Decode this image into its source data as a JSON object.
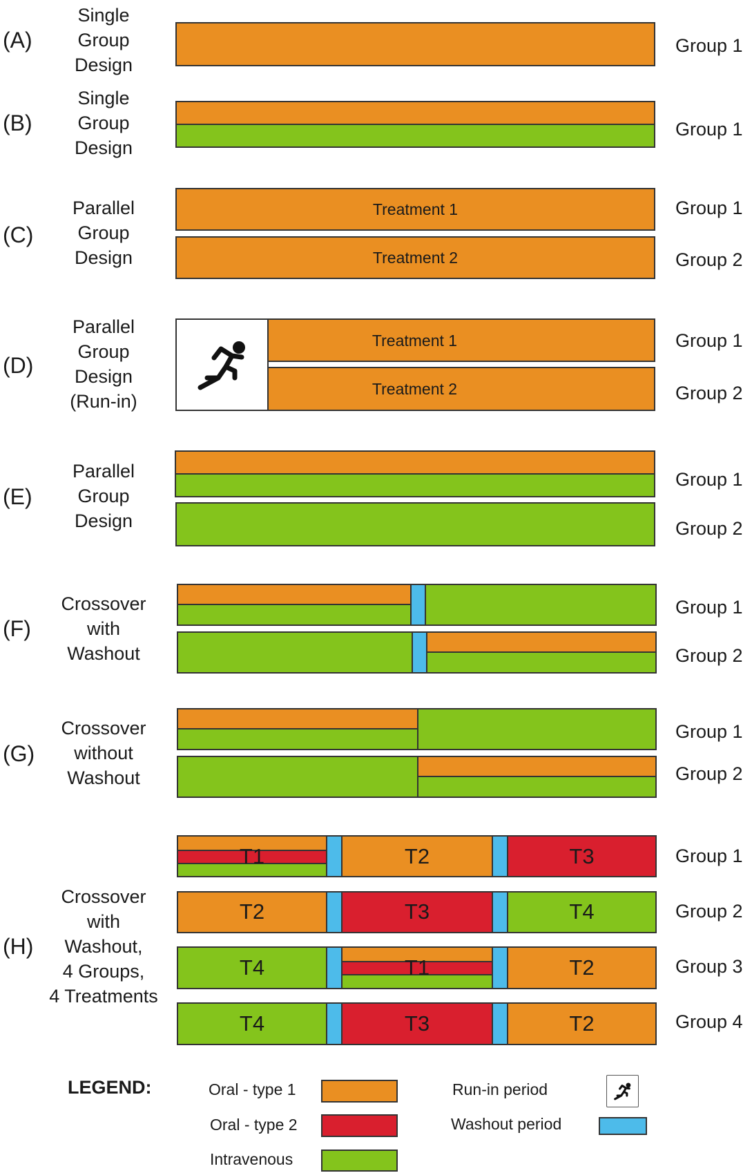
{
  "colors": {
    "oral_type1": "#EA8F22",
    "oral_type2": "#D91F2E",
    "intravenous": "#84C41C",
    "washout": "#4DBBEA"
  },
  "panels": [
    {
      "letter": "(A)",
      "design": [
        "Single",
        "Group",
        "Design"
      ],
      "groups": [
        "Group 1"
      ]
    },
    {
      "letter": "(B)",
      "design": [
        "Single",
        "Group",
        "Design"
      ],
      "groups": [
        "Group 1"
      ]
    },
    {
      "letter": "(C)",
      "design": [
        "Parallel",
        "Group",
        "Design"
      ],
      "groups": [
        "Group 1",
        "Group 2"
      ],
      "treatments": [
        "Treatment 1",
        "Treatment 2"
      ]
    },
    {
      "letter": "(D)",
      "design": [
        "Parallel",
        "Group",
        "Design",
        "(Run-in)"
      ],
      "groups": [
        "Group 1",
        "Group 2"
      ],
      "treatments": [
        "Treatment 1",
        "Treatment 2"
      ],
      "icon": "runner-icon"
    },
    {
      "letter": "(E)",
      "design": [
        "Parallel",
        "Group",
        "Design"
      ],
      "groups": [
        "Group 1",
        "Group 2"
      ]
    },
    {
      "letter": "(F)",
      "design": [
        "Crossover",
        "with",
        "Washout"
      ],
      "groups": [
        "Group 1",
        "Group 2"
      ]
    },
    {
      "letter": "(G)",
      "design": [
        "Crossover",
        "without",
        "Washout"
      ],
      "groups": [
        "Group 1",
        "Group 2"
      ]
    },
    {
      "letter": "(H)",
      "design": [
        "Crossover",
        "with",
        "Washout,",
        "4 Groups,",
        "4 Treatments"
      ],
      "groups": [
        "Group 1",
        "Group 2",
        "Group 3",
        "Group 4"
      ],
      "rows": [
        [
          "T1",
          "T2",
          "T3"
        ],
        [
          "T2",
          "T3",
          "T4"
        ],
        [
          "T4",
          "T1",
          "T2"
        ],
        [
          "T4",
          "T3",
          "T2"
        ]
      ]
    }
  ],
  "legend": {
    "title": "LEGEND:",
    "oral_type1": "Oral - type 1",
    "oral_type2": "Oral - type 2",
    "intravenous": "Intravenous",
    "runin": "Run-in period",
    "washout": "Washout period",
    "runin_icon": "runner-icon"
  }
}
